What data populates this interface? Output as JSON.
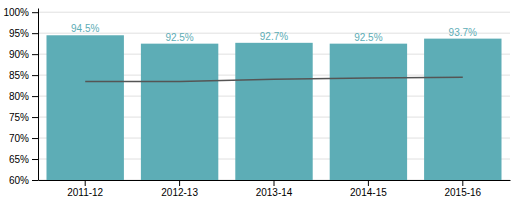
{
  "chart_data": {
    "type": "bar",
    "categories": [
      "2011-12",
      "2012-13",
      "2013-14",
      "2014-15",
      "2015-16"
    ],
    "series": [
      {
        "type": "bar",
        "color": "#5dadb6",
        "values": [
          94.5,
          92.5,
          92.7,
          92.5,
          93.7
        ],
        "value_labels": [
          "94.5%",
          "92.5%",
          "92.7%",
          "92.5%",
          "93.7%"
        ]
      },
      {
        "type": "line",
        "color": "#555555",
        "values": [
          83.5,
          83.5,
          84.0,
          84.3,
          84.5
        ]
      }
    ],
    "ylim": [
      60,
      101
    ],
    "yticks": [
      {
        "value": 60,
        "label": "60%"
      },
      {
        "value": 65,
        "label": "65%"
      },
      {
        "value": 70,
        "label": "70%"
      },
      {
        "value": 75,
        "label": "75%"
      },
      {
        "value": 80,
        "label": "80%"
      },
      {
        "value": 85,
        "label": "85%"
      },
      {
        "value": 90,
        "label": "90%"
      },
      {
        "value": 95,
        "label": "95%"
      },
      {
        "value": 100,
        "label": "100%"
      }
    ],
    "grid": true,
    "data_labels": true
  }
}
